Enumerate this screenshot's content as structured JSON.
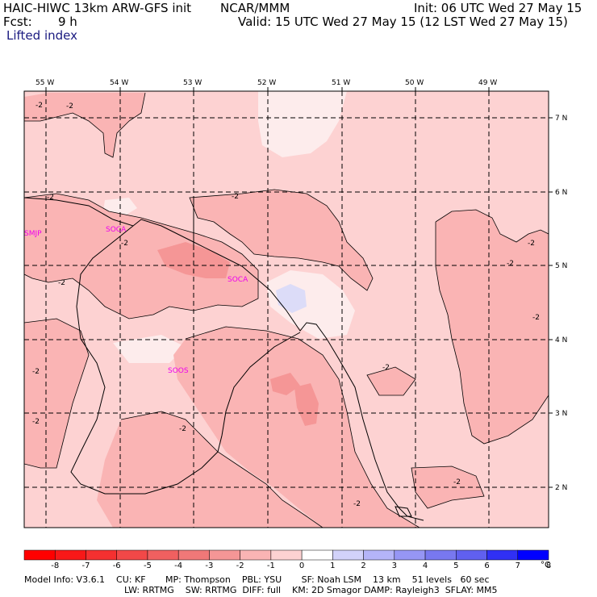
{
  "header": {
    "model_line": "HAIC-HIWC 13km ARW-GFS init",
    "org": "NCAR/MMM",
    "init": "Init: 06 UTC Wed 27 May 15",
    "fcst_label": "Fcst:",
    "fcst_value": "9 h",
    "valid": "Valid: 15 UTC Wed 27 May 15 (12 LST Wed 27 May 15)",
    "field": "Lifted index"
  },
  "map": {
    "lon_labels": [
      "55 W",
      "54 W",
      "53 W",
      "52 W",
      "51 W",
      "50 W",
      "49 W"
    ],
    "lat_labels": [
      "7 N",
      "6 N",
      "5 N",
      "4 N",
      "3 N",
      "2 N"
    ],
    "stations": [
      "SMJP",
      "SOCA",
      "SOCA",
      "SOOS"
    ],
    "contour_label": "-2",
    "colors": {
      "very_light": "#fdd2d2",
      "light": "#fab4b4",
      "medium": "#f59696",
      "strong": "#f07878",
      "near_zero": "#fdecec",
      "light_blue": "#dcdcf8"
    }
  },
  "colorbar": {
    "unit": "°C",
    "labels": [
      "-8",
      "-7",
      "-6",
      "-5",
      "-4",
      "-3",
      "-2",
      "-1",
      "0",
      "1",
      "2",
      "3",
      "4",
      "5",
      "6",
      "7",
      "8"
    ],
    "colors": [
      "#ff0000",
      "#f81818",
      "#f53030",
      "#f24848",
      "#f06060",
      "#f07878",
      "#f59696",
      "#fab4b4",
      "#fdd2d2",
      "#ffffff",
      "#d2d2fa",
      "#b4b4f8",
      "#9696f5",
      "#7878f0",
      "#6060f0",
      "#3030f5",
      "#0000ff"
    ]
  },
  "footer": {
    "line1": "Model Info: V3.6.1    CU: KF       MP: Thompson    PBL: YSU       SF: Noah LSM    13 km    51 levels   60 sec",
    "line2": "LW: RRTMG    SW: RRTMG  DIFF: full    KM: 2D Smagor DAMP: Rayleigh3  SFLAY: MM5"
  }
}
